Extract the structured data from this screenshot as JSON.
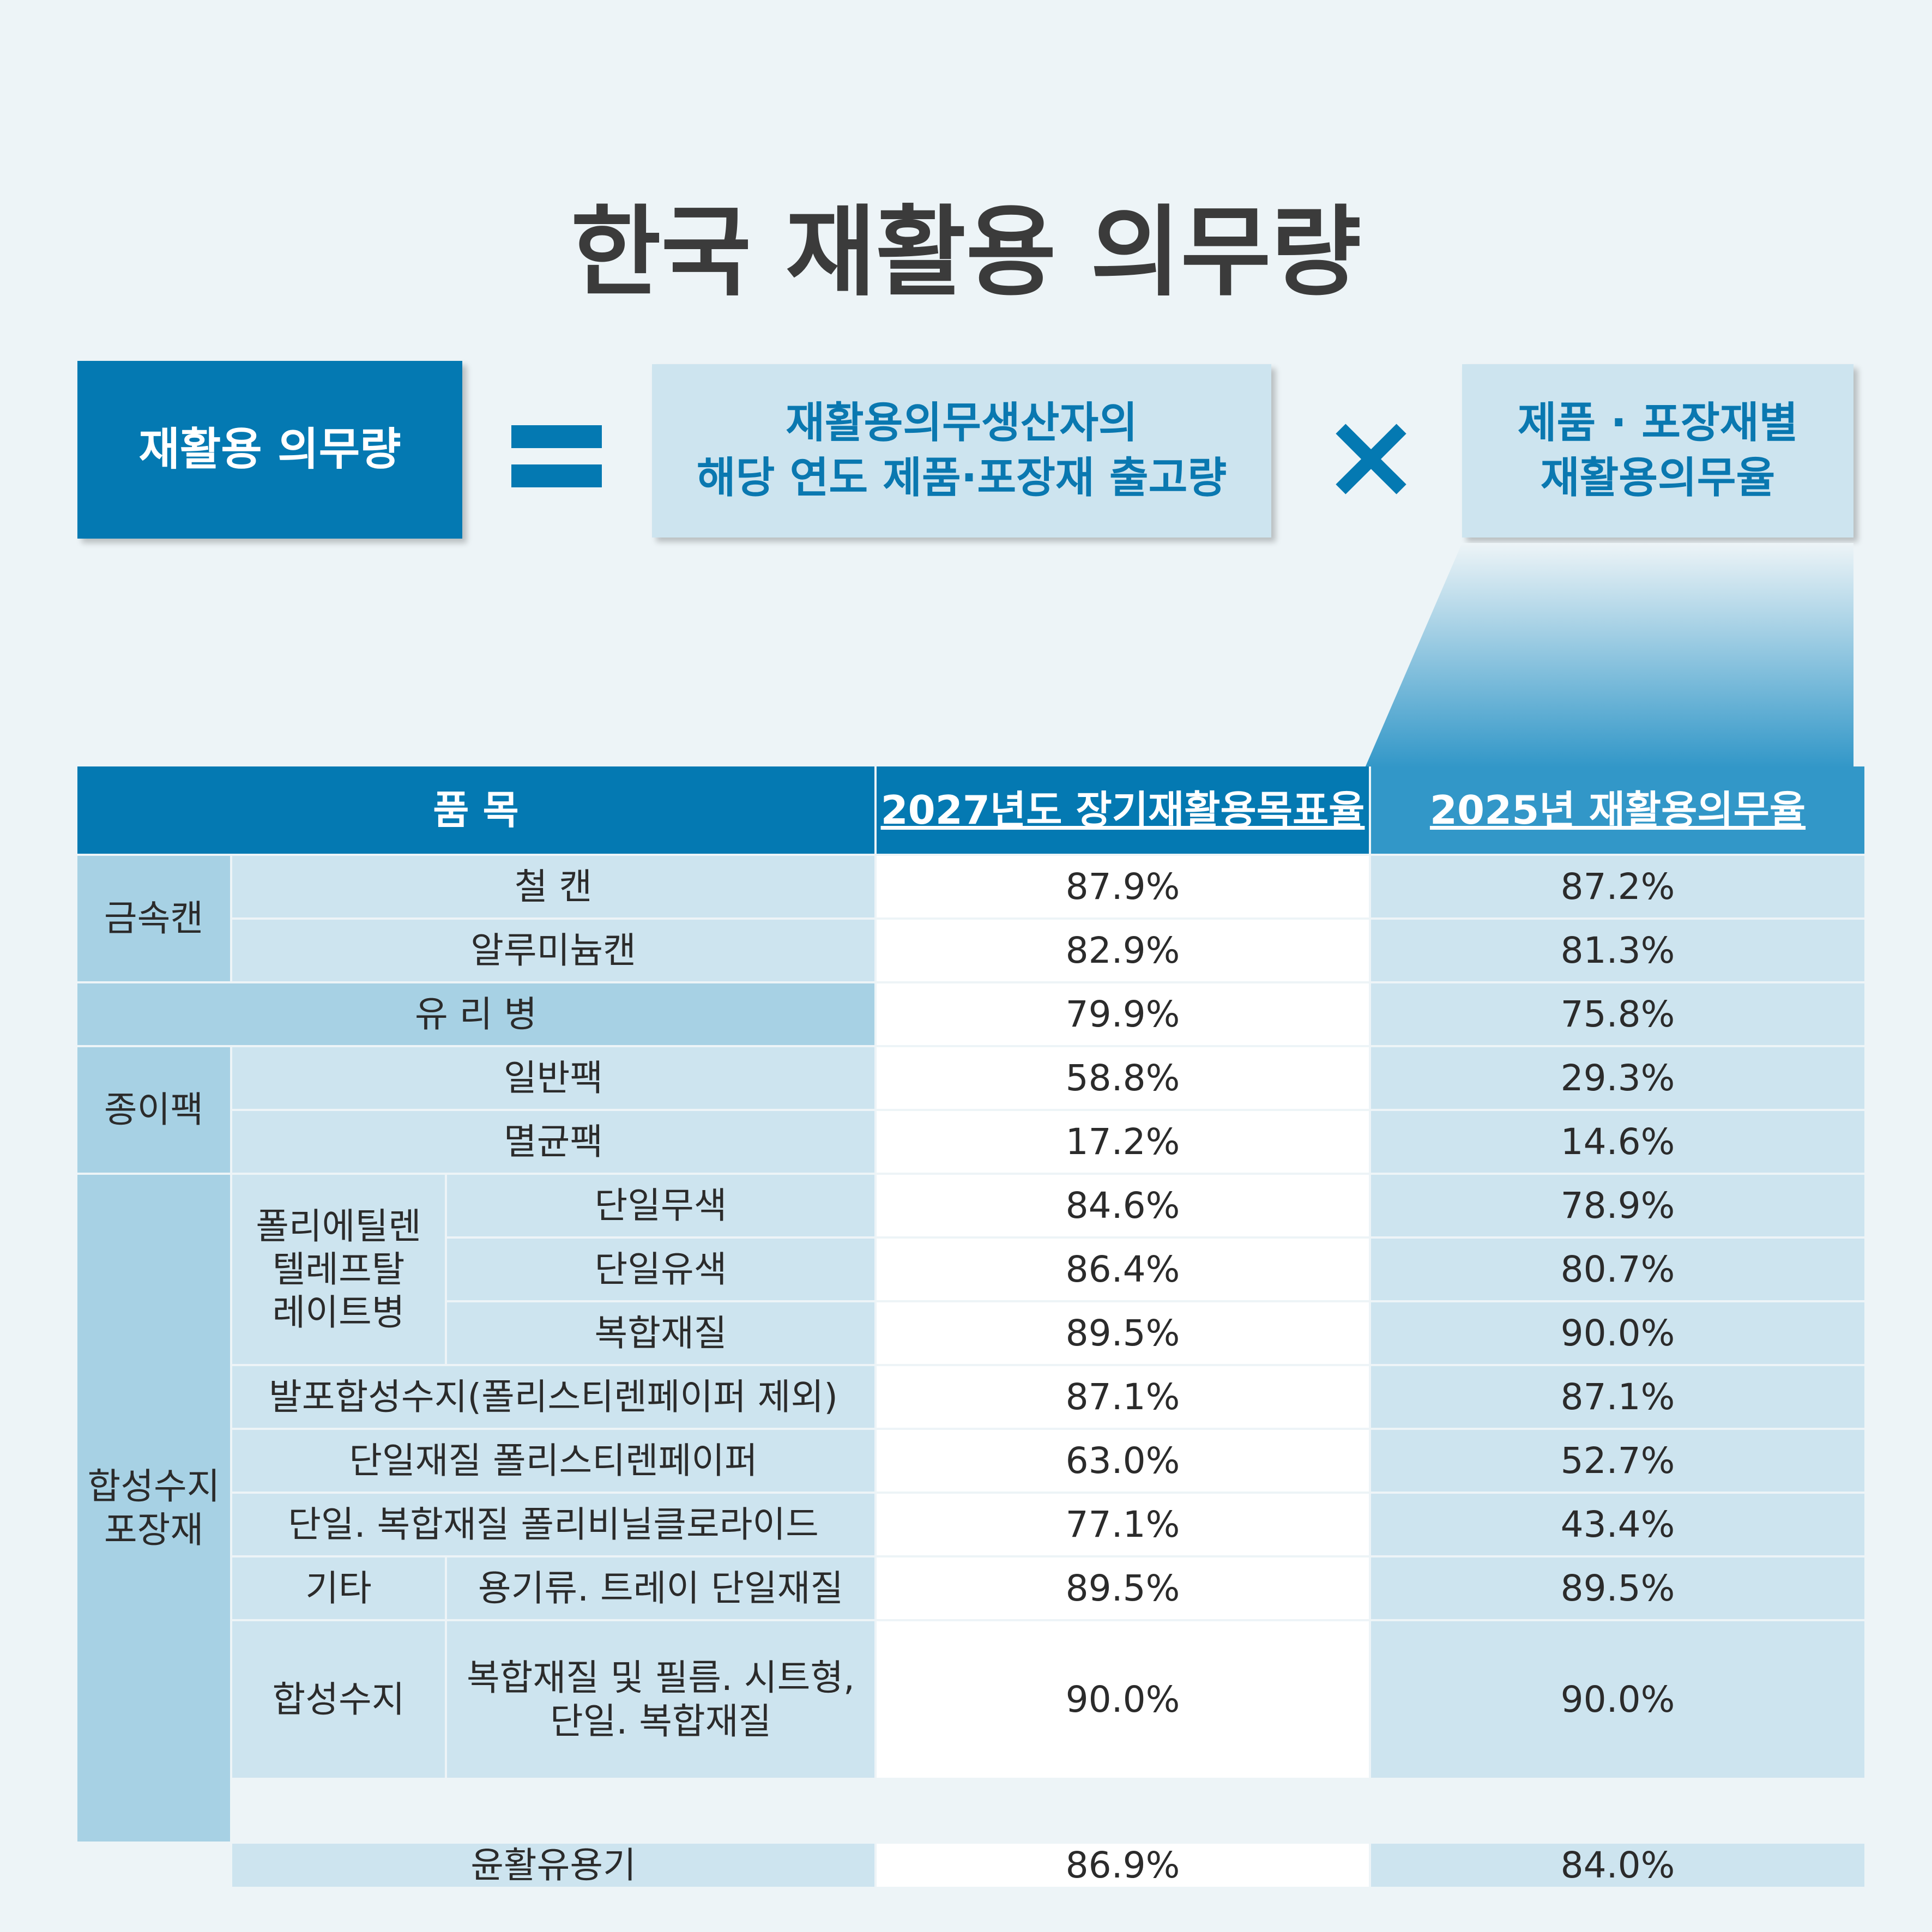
{
  "title": "한국 재활용 의무량",
  "formula": {
    "left": "재활용 의무량",
    "middle_line1": "재활용의무생산자의",
    "middle_line2": "해당 연도 제품·포장재 출고량",
    "right_line1": "제품 · 포장재별",
    "right_line2": "재활용의무율",
    "multiply": "×"
  },
  "colors": {
    "primary": "#0479b2",
    "header_light": "#3297c8",
    "cell_light": "#cde4ef",
    "cell_group": "#a7d1e4",
    "background": "#edf4f7",
    "title_text": "#3b3b3b"
  },
  "table": {
    "headers": {
      "item": "품 목",
      "target_2027": "2027년도 장기재활용목표율",
      "rate_2025": "2025년 재활용의무율"
    },
    "groups": {
      "metal_can": "금속캔",
      "paper_pack": "종이팩",
      "synthetic_packaging_line1": "합성수지",
      "synthetic_packaging_line2": "포장재",
      "pet_bottle_line1": "폴리에틸렌",
      "pet_bottle_line2": "텔레프탈",
      "pet_bottle_line3": "레이트병",
      "other": "기타",
      "synthetic_resin": "합성수지"
    },
    "rows": [
      {
        "label": "철 캔",
        "v2027": "87.9%",
        "v2025": "87.2%"
      },
      {
        "label": "알루미늄캔",
        "v2027": "82.9%",
        "v2025": "81.3%"
      },
      {
        "label": "유 리 병",
        "v2027": "79.9%",
        "v2025": "75.8%"
      },
      {
        "label": "일반팩",
        "v2027": "58.8%",
        "v2025": "29.3%"
      },
      {
        "label": "멸균팩",
        "v2027": "17.2%",
        "v2025": "14.6%"
      },
      {
        "label": "단일무색",
        "v2027": "84.6%",
        "v2025": "78.9%"
      },
      {
        "label": "단일유색",
        "v2027": "86.4%",
        "v2025": "80.7%"
      },
      {
        "label": "복합재질",
        "v2027": "89.5%",
        "v2025": "90.0%"
      },
      {
        "label": "발포합성수지(폴리스티렌페이퍼 제외)",
        "v2027": "87.1%",
        "v2025": "87.1%"
      },
      {
        "label": "단일재질 폴리스티렌페이퍼",
        "v2027": "63.0%",
        "v2025": "52.7%"
      },
      {
        "label": "단일. 복합재질 폴리비닐클로라이드",
        "v2027": "77.1%",
        "v2025": "43.4%"
      },
      {
        "label": "용기류. 트레이 단일재질",
        "v2027": "89.5%",
        "v2025": "89.5%"
      },
      {
        "label": "복합재질 및 필름. 시트형,",
        "label_line2": "단일. 복합재질",
        "v2027": "90.0%",
        "v2025": "90.0%"
      },
      {
        "label": "윤활유용기",
        "v2027": "86.9%",
        "v2025": "84.0%"
      }
    ]
  }
}
